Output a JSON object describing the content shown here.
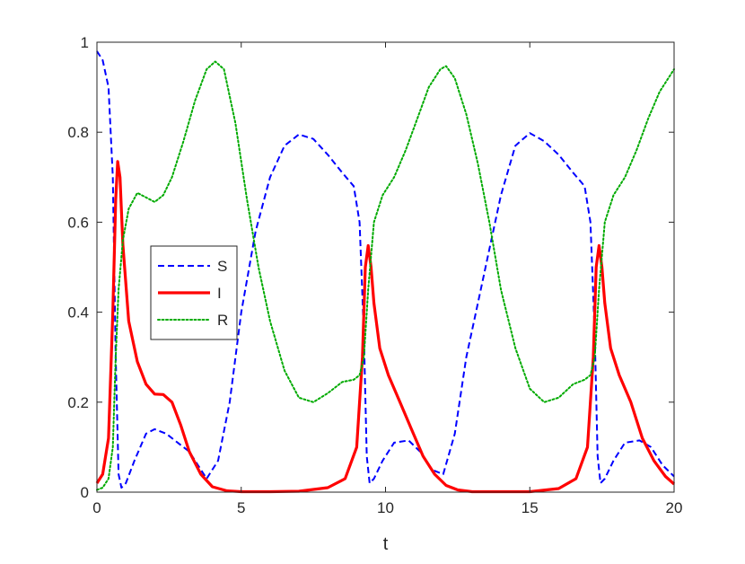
{
  "chart_data": {
    "type": "line",
    "title": "",
    "xlabel": "t",
    "ylabel": "",
    "xlim": [
      0,
      20
    ],
    "ylim": [
      0,
      1
    ],
    "grid": false,
    "legend_position": "center-left",
    "x_ticks": [
      0,
      5,
      10,
      15,
      20
    ],
    "x_tick_labels": [
      "0",
      "5",
      "10",
      "15",
      "20"
    ],
    "y_ticks": [
      0,
      0.2,
      0.4,
      0.6,
      0.8,
      1
    ],
    "y_tick_labels": [
      "0",
      "0.2",
      "0.4",
      "0.6",
      "0.8",
      "1"
    ],
    "series": [
      {
        "name": "S",
        "color": "#0000ff",
        "style": "dashed",
        "x": [
          0,
          0.2,
          0.4,
          0.55,
          0.65,
          0.75,
          0.85,
          1.0,
          1.3,
          1.7,
          2.0,
          2.4,
          2.8,
          3.2,
          3.5,
          3.8,
          4.2,
          4.6,
          5.0,
          5.5,
          6.0,
          6.5,
          7.0,
          7.5,
          8.0,
          8.5,
          8.9,
          9.1,
          9.25,
          9.35,
          9.45,
          9.6,
          9.9,
          10.3,
          10.8,
          11.2,
          11.6,
          12.0,
          12.4,
          12.8,
          13.2,
          13.6,
          14.0,
          14.5,
          15.0,
          15.5,
          16.0,
          16.5,
          16.9,
          17.1,
          17.25,
          17.35,
          17.45,
          17.6,
          17.9,
          18.3,
          18.8,
          19.2,
          19.6,
          20.0
        ],
        "y": [
          0.98,
          0.96,
          0.9,
          0.7,
          0.3,
          0.04,
          0.01,
          0.02,
          0.07,
          0.13,
          0.14,
          0.13,
          0.11,
          0.09,
          0.06,
          0.03,
          0.07,
          0.2,
          0.4,
          0.58,
          0.7,
          0.77,
          0.795,
          0.785,
          0.75,
          0.71,
          0.68,
          0.6,
          0.35,
          0.08,
          0.02,
          0.03,
          0.07,
          0.11,
          0.115,
          0.09,
          0.05,
          0.04,
          0.13,
          0.3,
          0.42,
          0.54,
          0.66,
          0.77,
          0.798,
          0.78,
          0.75,
          0.71,
          0.68,
          0.6,
          0.35,
          0.08,
          0.02,
          0.03,
          0.07,
          0.11,
          0.115,
          0.1,
          0.06,
          0.035
        ]
      },
      {
        "name": "I",
        "color": "#ff0000",
        "style": "solid",
        "x": [
          0,
          0.2,
          0.4,
          0.55,
          0.65,
          0.72,
          0.8,
          0.9,
          1.1,
          1.4,
          1.7,
          2.0,
          2.3,
          2.6,
          2.9,
          3.2,
          3.6,
          4.0,
          4.5,
          5.0,
          6.0,
          7.0,
          8.0,
          8.6,
          9.0,
          9.2,
          9.3,
          9.4,
          9.5,
          9.6,
          9.8,
          10.1,
          10.5,
          10.9,
          11.3,
          11.7,
          12.1,
          12.5,
          13.0,
          14.0,
          15.0,
          16.0,
          16.6,
          17.0,
          17.2,
          17.3,
          17.4,
          17.5,
          17.6,
          17.8,
          18.1,
          18.5,
          18.9,
          19.3,
          19.7,
          20.0
        ],
        "y": [
          0.02,
          0.04,
          0.12,
          0.4,
          0.65,
          0.735,
          0.7,
          0.55,
          0.38,
          0.29,
          0.24,
          0.218,
          0.217,
          0.2,
          0.15,
          0.09,
          0.04,
          0.012,
          0.003,
          0.001,
          0.001,
          0.002,
          0.01,
          0.03,
          0.1,
          0.3,
          0.5,
          0.548,
          0.5,
          0.42,
          0.32,
          0.26,
          0.2,
          0.14,
          0.08,
          0.04,
          0.015,
          0.005,
          0.001,
          0.001,
          0.001,
          0.008,
          0.03,
          0.1,
          0.3,
          0.5,
          0.548,
          0.5,
          0.42,
          0.32,
          0.26,
          0.2,
          0.12,
          0.07,
          0.035,
          0.018
        ]
      },
      {
        "name": "R",
        "color": "#00aa00",
        "style": "dotted",
        "x": [
          0,
          0.2,
          0.4,
          0.55,
          0.65,
          0.75,
          0.9,
          1.1,
          1.4,
          1.7,
          2.0,
          2.3,
          2.6,
          3.0,
          3.4,
          3.8,
          4.1,
          4.4,
          4.8,
          5.2,
          5.6,
          6.0,
          6.5,
          7.0,
          7.5,
          8.0,
          8.5,
          8.9,
          9.1,
          9.25,
          9.4,
          9.6,
          9.9,
          10.3,
          10.7,
          11.1,
          11.5,
          11.9,
          12.1,
          12.4,
          12.8,
          13.2,
          13.6,
          14.0,
          14.5,
          15.0,
          15.5,
          16.0,
          16.5,
          16.9,
          17.1,
          17.25,
          17.4,
          17.6,
          17.9,
          18.3,
          18.7,
          19.1,
          19.5,
          20.0
        ],
        "y": [
          0.005,
          0.01,
          0.03,
          0.1,
          0.3,
          0.45,
          0.56,
          0.63,
          0.665,
          0.655,
          0.645,
          0.66,
          0.7,
          0.78,
          0.87,
          0.94,
          0.957,
          0.94,
          0.82,
          0.65,
          0.5,
          0.38,
          0.27,
          0.21,
          0.2,
          0.22,
          0.245,
          0.25,
          0.26,
          0.3,
          0.45,
          0.6,
          0.66,
          0.7,
          0.76,
          0.83,
          0.9,
          0.94,
          0.947,
          0.92,
          0.84,
          0.73,
          0.6,
          0.45,
          0.32,
          0.23,
          0.2,
          0.21,
          0.24,
          0.25,
          0.26,
          0.3,
          0.45,
          0.6,
          0.66,
          0.7,
          0.76,
          0.83,
          0.89,
          0.94
        ]
      }
    ]
  }
}
